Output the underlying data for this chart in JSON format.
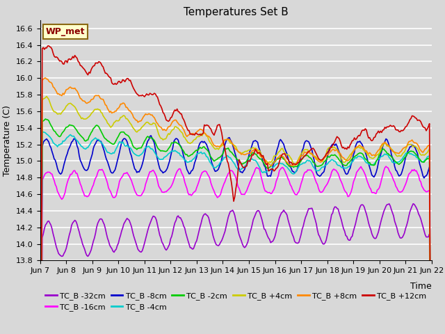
{
  "title": "Temperatures Set B",
  "xlabel": "Time",
  "ylabel": "Temperature (C)",
  "ylim": [
    13.8,
    16.7
  ],
  "xlim": [
    0,
    360
  ],
  "x_tick_labels": [
    "Jun 7",
    "Jun 8",
    "Jun 9",
    "Jun 10",
    "Jun 11",
    "Jun 12",
    "Jun 13",
    "Jun 14",
    "Jun 15",
    "Jun 16",
    "Jun 17",
    "Jun 18",
    "Jun 19",
    "Jun 20",
    "Jun 21",
    "Jun 22"
  ],
  "x_tick_positions": [
    0,
    24,
    48,
    72,
    96,
    120,
    144,
    168,
    192,
    216,
    240,
    264,
    288,
    312,
    336,
    360
  ],
  "wp_met_label": "WP_met",
  "legend_entries": [
    {
      "label": "TC_B -32cm",
      "color": "#9900cc"
    },
    {
      "label": "TC_B -16cm",
      "color": "#ff00ff"
    },
    {
      "label": "TC_B -8cm",
      "color": "#0000cc"
    },
    {
      "label": "TC_B -4cm",
      "color": "#00cccc"
    },
    {
      "label": "TC_B -2cm",
      "color": "#00cc00"
    },
    {
      "label": "TC_B +4cm",
      "color": "#cccc00"
    },
    {
      "label": "TC_B +8cm",
      "color": "#ff8800"
    },
    {
      "label": "TC_B +12cm",
      "color": "#cc0000"
    }
  ],
  "plot_bg_color": "#d8d8d8",
  "grid_color": "#ffffff",
  "title_fontsize": 11,
  "axis_fontsize": 9,
  "tick_fontsize": 8
}
